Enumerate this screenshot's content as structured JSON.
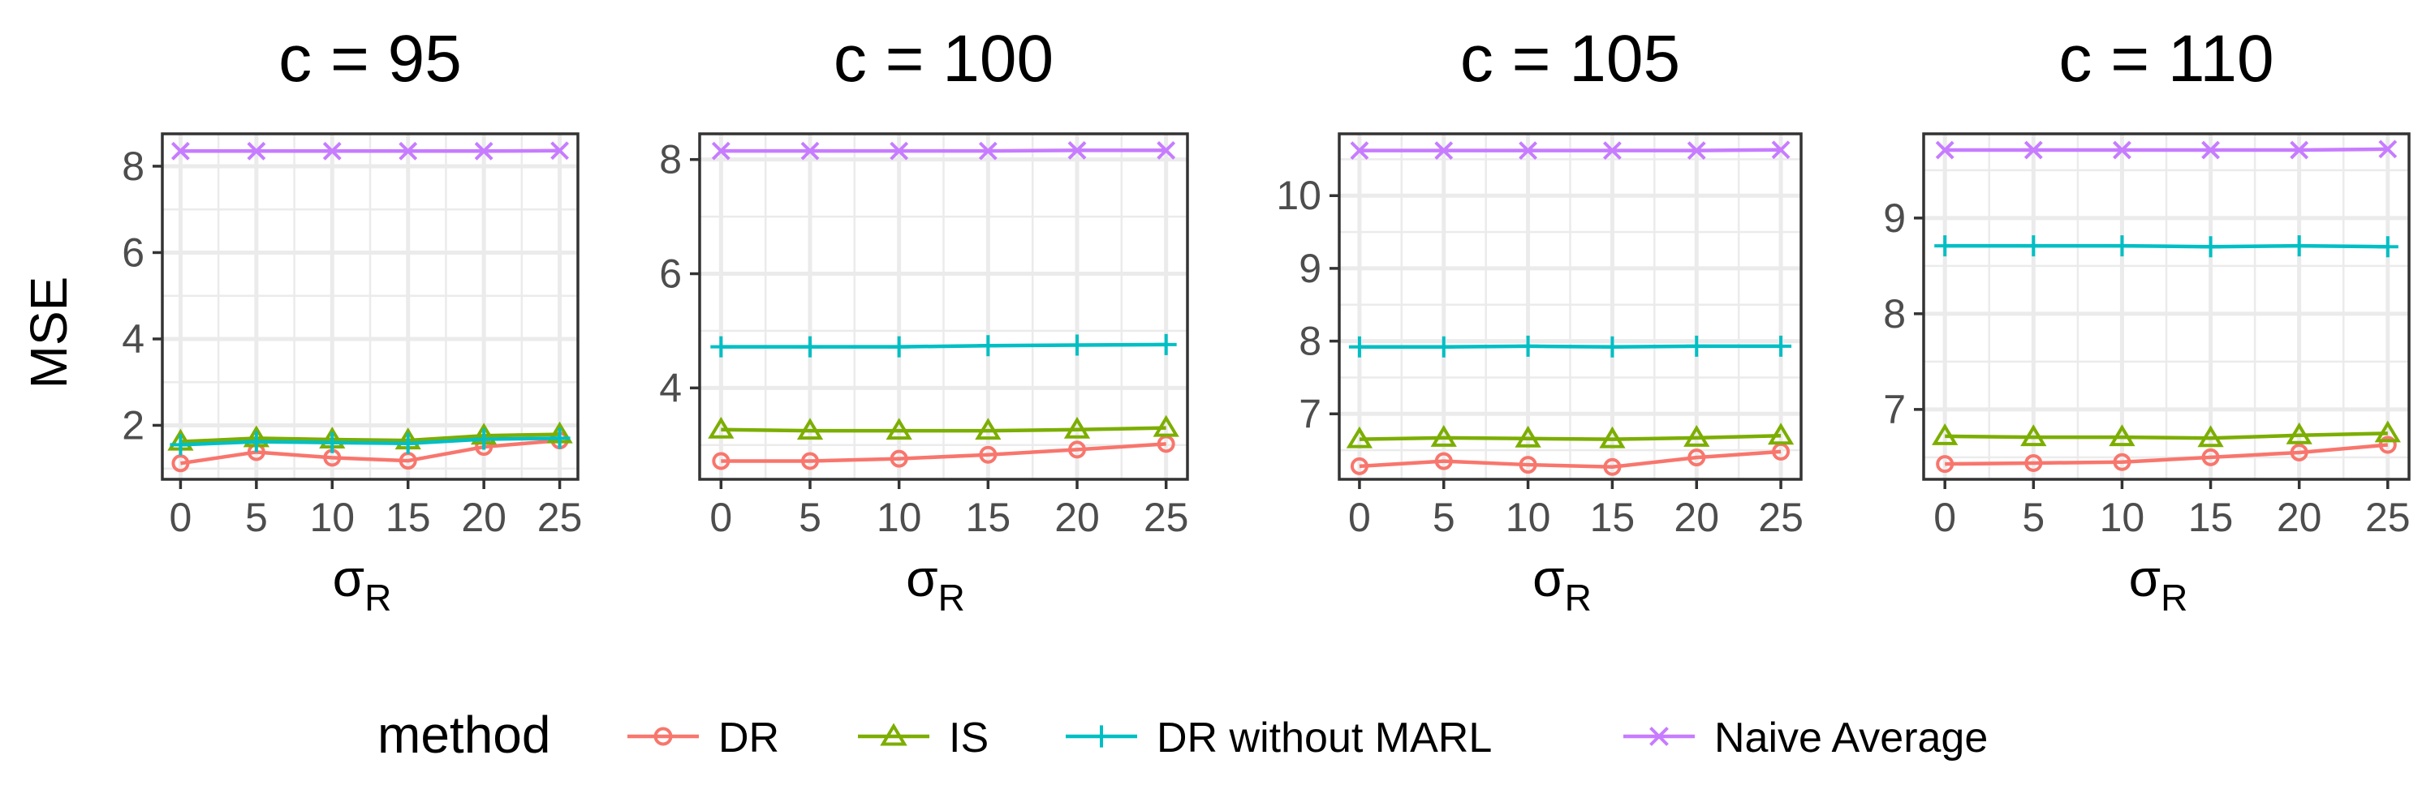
{
  "chart_data": [
    {
      "type": "line",
      "title": "c = 95",
      "xlabel_main": "σ",
      "xlabel_sub": "R",
      "ylabel": "MSE",
      "x": [
        0,
        5,
        10,
        15,
        20,
        25
      ],
      "xlim": [
        -1.2,
        26.2
      ],
      "ylim": [
        0.75,
        8.75
      ],
      "yticks": [
        2,
        4,
        6,
        8
      ],
      "series": [
        {
          "name": "DR",
          "values": [
            1.12,
            1.38,
            1.25,
            1.18,
            1.5,
            1.65
          ]
        },
        {
          "name": "IS",
          "values": [
            1.62,
            1.7,
            1.67,
            1.65,
            1.76,
            1.79
          ]
        },
        {
          "name": "DR without MARL",
          "values": [
            1.55,
            1.62,
            1.6,
            1.58,
            1.68,
            1.7
          ]
        },
        {
          "name": "Naive Average",
          "values": [
            8.35,
            8.35,
            8.35,
            8.35,
            8.35,
            8.36
          ]
        }
      ]
    },
    {
      "type": "line",
      "title": "c = 100",
      "xlabel_main": "σ",
      "xlabel_sub": "R",
      "ylabel": "",
      "x": [
        0,
        5,
        10,
        15,
        20,
        25
      ],
      "xlim": [
        -1.2,
        26.2
      ],
      "ylim": [
        2.4,
        8.45
      ],
      "yticks": [
        4,
        6,
        8
      ],
      "series": [
        {
          "name": "DR",
          "values": [
            2.72,
            2.72,
            2.76,
            2.83,
            2.92,
            3.02
          ]
        },
        {
          "name": "IS",
          "values": [
            3.27,
            3.25,
            3.25,
            3.25,
            3.27,
            3.3
          ]
        },
        {
          "name": "DR without MARL",
          "values": [
            4.72,
            4.72,
            4.72,
            4.74,
            4.75,
            4.76
          ]
        },
        {
          "name": "Naive Average",
          "values": [
            8.15,
            8.15,
            8.15,
            8.15,
            8.16,
            8.16
          ]
        }
      ]
    },
    {
      "type": "line",
      "title": "c = 105",
      "xlabel_main": "σ",
      "xlabel_sub": "R",
      "ylabel": "",
      "x": [
        0,
        5,
        10,
        15,
        20,
        25
      ],
      "xlim": [
        -1.2,
        26.2
      ],
      "ylim": [
        6.1,
        10.85
      ],
      "yticks": [
        7,
        8,
        9,
        10
      ],
      "series": [
        {
          "name": "DR",
          "values": [
            6.28,
            6.35,
            6.3,
            6.27,
            6.4,
            6.48
          ]
        },
        {
          "name": "IS",
          "values": [
            6.65,
            6.67,
            6.66,
            6.65,
            6.67,
            6.7
          ]
        },
        {
          "name": "DR without MARL",
          "values": [
            7.92,
            7.92,
            7.93,
            7.92,
            7.93,
            7.93
          ]
        },
        {
          "name": "Naive Average",
          "values": [
            10.62,
            10.62,
            10.62,
            10.62,
            10.62,
            10.63
          ]
        }
      ]
    },
    {
      "type": "line",
      "title": "c = 110",
      "xlabel_main": "σ",
      "xlabel_sub": "R",
      "ylabel": "",
      "x": [
        0,
        5,
        10,
        15,
        20,
        25
      ],
      "xlim": [
        -1.2,
        26.2
      ],
      "ylim": [
        6.27,
        9.88
      ],
      "yticks": [
        7,
        8,
        9
      ],
      "series": [
        {
          "name": "DR",
          "values": [
            6.43,
            6.44,
            6.45,
            6.5,
            6.55,
            6.63
          ]
        },
        {
          "name": "IS",
          "values": [
            6.72,
            6.71,
            6.71,
            6.7,
            6.73,
            6.75
          ]
        },
        {
          "name": "DR without MARL",
          "values": [
            8.71,
            8.71,
            8.71,
            8.7,
            8.71,
            8.7
          ]
        },
        {
          "name": "Naive Average",
          "values": [
            9.71,
            9.71,
            9.71,
            9.71,
            9.71,
            9.72
          ]
        }
      ]
    }
  ],
  "legend": {
    "title": "method",
    "placement": "bottom",
    "entries": [
      {
        "label": "DR",
        "color": "#F8766D",
        "marker": "circle"
      },
      {
        "label": "IS",
        "color": "#7CAE00",
        "marker": "triangle"
      },
      {
        "label": "DR without MARL",
        "color": "#00BFC4",
        "marker": "plus"
      },
      {
        "label": "Naive Average",
        "color": "#C77CFF",
        "marker": "cross"
      }
    ]
  },
  "colors": {
    "DR": "#F8766D",
    "IS": "#7CAE00",
    "DR without MARL": "#00BFC4",
    "Naive Average": "#C77CFF",
    "grid": "#EBEBEB",
    "panel_border": "#333333"
  }
}
